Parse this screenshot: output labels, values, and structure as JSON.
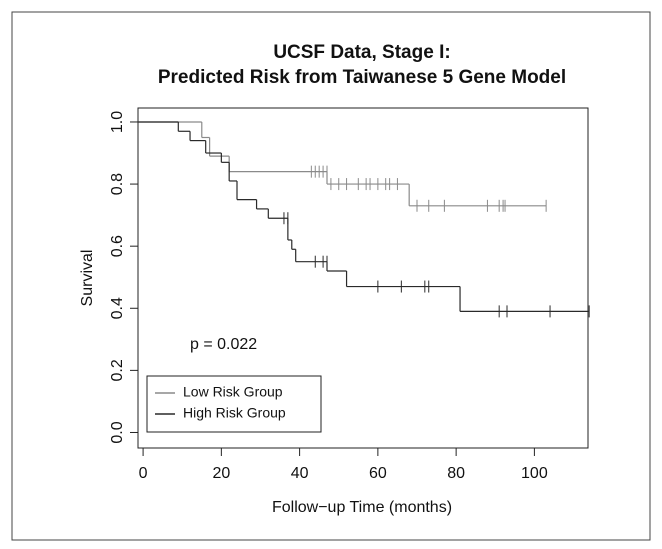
{
  "chart_data": {
    "type": "km",
    "title": "UCSF Data, Stage I:",
    "subtitle": "Predicted Risk from Taiwanese 5 Gene Model",
    "x_label": "Follow−up Time (months)",
    "y_label": "Survival",
    "annotation": "p = 0.022",
    "xlim": [
      -1.3,
      113.7
    ],
    "ylim": [
      -0.05,
      1.045
    ],
    "xticks": [
      0,
      20,
      40,
      60,
      80,
      100
    ],
    "yticks": [
      {
        "value": 0,
        "label": "0.0"
      },
      {
        "value": 0.2,
        "label": "0.2"
      },
      {
        "value": 0.4,
        "label": "0.4"
      },
      {
        "value": 0.6,
        "label": "0.6"
      },
      {
        "value": 0.8,
        "label": "0.8"
      },
      {
        "value": 1,
        "label": "1.0"
      }
    ],
    "legend": "bottom-left",
    "series": [
      {
        "name": "Low Risk Group",
        "color": "#8a8a8a",
        "x": [
          0,
          15,
          17,
          22,
          47,
          68
        ],
        "values": [
          1.0,
          0.95,
          0.89,
          0.84,
          0.8,
          0.73
        ],
        "censored": {
          "x": [
            43,
            44,
            45,
            46,
            47,
            48,
            50,
            52,
            55,
            57,
            58,
            60,
            62,
            63,
            65,
            70,
            73,
            77,
            88,
            91,
            92,
            92.5,
            103
          ],
          "values": [
            0.84,
            0.84,
            0.84,
            0.84,
            0.84,
            0.8,
            0.8,
            0.8,
            0.8,
            0.8,
            0.8,
            0.8,
            0.8,
            0.8,
            0.8,
            0.73,
            0.73,
            0.73,
            0.73,
            0.73,
            0.73,
            0.73,
            0.73
          ]
        }
      },
      {
        "name": "High Risk Group",
        "color": "#2a2a2a",
        "x": [
          0,
          9,
          12,
          16,
          20,
          22,
          24,
          29,
          32,
          37,
          38,
          39,
          47,
          52,
          81
        ],
        "values": [
          1.0,
          0.97,
          0.94,
          0.9,
          0.87,
          0.81,
          0.75,
          0.72,
          0.69,
          0.62,
          0.59,
          0.55,
          0.52,
          0.47,
          0.39
        ],
        "censored": {
          "x": [
            36,
            37,
            44,
            46,
            47,
            60,
            66,
            72,
            73,
            91,
            93,
            104,
            114
          ],
          "values": [
            0.69,
            0.69,
            0.55,
            0.55,
            0.55,
            0.47,
            0.47,
            0.47,
            0.47,
            0.39,
            0.39,
            0.39,
            0.39
          ]
        }
      }
    ]
  }
}
